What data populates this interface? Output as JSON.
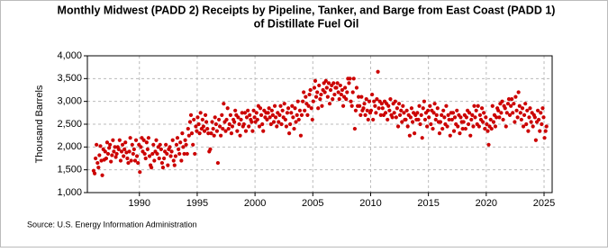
{
  "chart_data": {
    "type": "scatter",
    "title": "Monthly Midwest (PADD 2) Receipts by Pipeline, Tanker, and Barge from East Coast (PADD 1)",
    "subtitle": "of Distillate Fuel Oil",
    "ylabel": "Thousand Barrels",
    "source": "Source: U.S. Energy Information Administration",
    "color": "#cc0000",
    "grid": true,
    "xlim": [
      1985.5,
      2025.7
    ],
    "xticks": [
      1990,
      1995,
      2000,
      2005,
      2010,
      2015,
      2020,
      2025
    ],
    "ylim": [
      1000,
      4000
    ],
    "yticks": [
      {
        "value": 1000,
        "label": "1,000"
      },
      {
        "value": 1500,
        "label": "1,500"
      },
      {
        "value": 2000,
        "label": "2,000"
      },
      {
        "value": 2500,
        "label": "2,500"
      },
      {
        "value": 3000,
        "label": "3,000"
      },
      {
        "value": 3500,
        "label": "3,500"
      },
      {
        "value": 4000,
        "label": "4,000"
      }
    ],
    "x": [
      1986.04,
      1986.13,
      1986.21,
      1986.29,
      1986.38,
      1986.46,
      1986.54,
      1986.63,
      1986.71,
      1986.79,
      1986.88,
      1986.96,
      1987.04,
      1987.13,
      1987.21,
      1987.29,
      1987.38,
      1987.46,
      1987.54,
      1987.63,
      1987.71,
      1987.79,
      1987.88,
      1987.96,
      1988.04,
      1988.13,
      1988.21,
      1988.29,
      1988.38,
      1988.46,
      1988.54,
      1988.63,
      1988.71,
      1988.79,
      1988.88,
      1988.96,
      1989.04,
      1989.13,
      1989.21,
      1989.29,
      1989.38,
      1989.46,
      1989.54,
      1989.63,
      1989.71,
      1989.79,
      1989.88,
      1989.96,
      1990.04,
      1990.13,
      1990.21,
      1990.29,
      1990.38,
      1990.46,
      1990.54,
      1990.63,
      1990.71,
      1990.79,
      1990.88,
      1990.96,
      1991.04,
      1991.13,
      1991.21,
      1991.29,
      1991.38,
      1991.46,
      1991.54,
      1991.63,
      1991.71,
      1991.79,
      1991.88,
      1991.96,
      1992.04,
      1992.13,
      1992.21,
      1992.29,
      1992.38,
      1992.46,
      1992.54,
      1992.63,
      1992.71,
      1992.79,
      1992.88,
      1992.96,
      1993.04,
      1993.13,
      1993.21,
      1993.29,
      1993.38,
      1993.46,
      1993.54,
      1993.63,
      1993.71,
      1993.79,
      1993.88,
      1993.96,
      1994.04,
      1994.13,
      1994.21,
      1994.29,
      1994.38,
      1994.46,
      1994.54,
      1994.63,
      1994.71,
      1994.79,
      1994.88,
      1994.96,
      1995.04,
      1995.13,
      1995.21,
      1995.29,
      1995.38,
      1995.46,
      1995.54,
      1995.63,
      1995.71,
      1995.79,
      1995.88,
      1995.96,
      1996.04,
      1996.13,
      1996.21,
      1996.29,
      1996.38,
      1996.46,
      1996.54,
      1996.63,
      1996.71,
      1996.79,
      1996.88,
      1996.96,
      1997.04,
      1997.13,
      1997.21,
      1997.29,
      1997.38,
      1997.46,
      1997.54,
      1997.63,
      1997.71,
      1997.79,
      1997.88,
      1997.96,
      1998.04,
      1998.13,
      1998.21,
      1998.29,
      1998.38,
      1998.46,
      1998.54,
      1998.63,
      1998.71,
      1998.79,
      1998.88,
      1998.96,
      1999.04,
      1999.13,
      1999.21,
      1999.29,
      1999.38,
      1999.46,
      1999.54,
      1999.63,
      1999.71,
      1999.79,
      1999.88,
      1999.96,
      2000.04,
      2000.13,
      2000.21,
      2000.29,
      2000.38,
      2000.46,
      2000.54,
      2000.63,
      2000.71,
      2000.79,
      2000.88,
      2000.96,
      2001.04,
      2001.13,
      2001.21,
      2001.29,
      2001.38,
      2001.46,
      2001.54,
      2001.63,
      2001.71,
      2001.79,
      2001.88,
      2001.96,
      2002.04,
      2002.13,
      2002.21,
      2002.29,
      2002.38,
      2002.46,
      2002.54,
      2002.63,
      2002.71,
      2002.79,
      2002.88,
      2002.96,
      2003.04,
      2003.13,
      2003.21,
      2003.29,
      2003.38,
      2003.46,
      2003.54,
      2003.63,
      2003.71,
      2003.79,
      2003.88,
      2003.96,
      2004.04,
      2004.13,
      2004.21,
      2004.29,
      2004.38,
      2004.46,
      2004.54,
      2004.63,
      2004.71,
      2004.79,
      2004.88,
      2004.96,
      2005.04,
      2005.13,
      2005.21,
      2005.29,
      2005.38,
      2005.46,
      2005.54,
      2005.63,
      2005.71,
      2005.79,
      2005.88,
      2005.96,
      2006.04,
      2006.13,
      2006.21,
      2006.29,
      2006.38,
      2006.46,
      2006.54,
      2006.63,
      2006.71,
      2006.79,
      2006.88,
      2006.96,
      2007.04,
      2007.13,
      2007.21,
      2007.29,
      2007.38,
      2007.46,
      2007.54,
      2007.63,
      2007.71,
      2007.79,
      2007.88,
      2007.96,
      2008.04,
      2008.13,
      2008.21,
      2008.29,
      2008.38,
      2008.46,
      2008.54,
      2008.63,
      2008.71,
      2008.79,
      2008.88,
      2008.96,
      2009.04,
      2009.13,
      2009.21,
      2009.29,
      2009.38,
      2009.46,
      2009.54,
      2009.63,
      2009.71,
      2009.79,
      2009.88,
      2009.96,
      2010.04,
      2010.13,
      2010.21,
      2010.29,
      2010.38,
      2010.46,
      2010.54,
      2010.63,
      2010.71,
      2010.79,
      2010.88,
      2010.96,
      2011.04,
      2011.13,
      2011.21,
      2011.29,
      2011.38,
      2011.46,
      2011.54,
      2011.63,
      2011.71,
      2011.79,
      2011.88,
      2011.96,
      2012.04,
      2012.13,
      2012.21,
      2012.29,
      2012.38,
      2012.46,
      2012.54,
      2012.63,
      2012.71,
      2012.79,
      2012.88,
      2012.96,
      2013.04,
      2013.13,
      2013.21,
      2013.29,
      2013.38,
      2013.46,
      2013.54,
      2013.63,
      2013.71,
      2013.79,
      2013.88,
      2013.96,
      2014.04,
      2014.13,
      2014.21,
      2014.29,
      2014.38,
      2014.46,
      2014.54,
      2014.63,
      2014.71,
      2014.79,
      2014.88,
      2014.96,
      2015.04,
      2015.13,
      2015.21,
      2015.29,
      2015.38,
      2015.46,
      2015.54,
      2015.63,
      2015.71,
      2015.79,
      2015.88,
      2015.96,
      2016.04,
      2016.13,
      2016.21,
      2016.29,
      2016.38,
      2016.46,
      2016.54,
      2016.63,
      2016.71,
      2016.79,
      2016.88,
      2016.96,
      2017.04,
      2017.13,
      2017.21,
      2017.29,
      2017.38,
      2017.46,
      2017.54,
      2017.63,
      2017.71,
      2017.79,
      2017.88,
      2017.96,
      2018.04,
      2018.13,
      2018.21,
      2018.29,
      2018.38,
      2018.46,
      2018.54,
      2018.63,
      2018.71,
      2018.79,
      2018.88,
      2018.96,
      2019.04,
      2019.13,
      2019.21,
      2019.29,
      2019.38,
      2019.46,
      2019.54,
      2019.63,
      2019.71,
      2019.79,
      2019.88,
      2019.96,
      2020.04,
      2020.13,
      2020.21,
      2020.29,
      2020.38,
      2020.46,
      2020.54,
      2020.63,
      2020.71,
      2020.79,
      2020.88,
      2020.96,
      2021.04,
      2021.13,
      2021.21,
      2021.29,
      2021.38,
      2021.46,
      2021.54,
      2021.63,
      2021.71,
      2021.79,
      2021.88,
      2021.96,
      2022.04,
      2022.13,
      2022.21,
      2022.29,
      2022.38,
      2022.46,
      2022.54,
      2022.63,
      2022.71,
      2022.79,
      2022.88,
      2022.96,
      2023.04,
      2023.13,
      2023.21,
      2023.29,
      2023.38,
      2023.46,
      2023.54,
      2023.63,
      2023.71,
      2023.79,
      2023.88,
      2023.96,
      2024.04,
      2024.13,
      2024.21,
      2024.29,
      2024.38,
      2024.46,
      2024.54,
      2024.63,
      2024.71,
      2024.79,
      2024.88,
      2024.96,
      2025.04,
      2025.13,
      2025.21
    ],
    "values": [
      1480,
      1420,
      1750,
      2050,
      1650,
      1550,
      1820,
      2020,
      1700,
      1380,
      1950,
      1720,
      1900,
      1750,
      2100,
      1850,
      1980,
      2050,
      1680,
      1820,
      2150,
      1900,
      2000,
      1780,
      1850,
      2000,
      1950,
      2150,
      1700,
      1900,
      2050,
      1800,
      1950,
      2100,
      1880,
      1750,
      1650,
      1900,
      2200,
      1700,
      2050,
      1850,
      1950,
      1700,
      2150,
      1800,
      1650,
      2050,
      1450,
      2000,
      2200,
      1900,
      2150,
      1850,
      1750,
      2100,
      1950,
      2200,
      1800,
      1600,
      1550,
      1850,
      2050,
      1700,
      1900,
      2150,
      1850,
      2000,
      1750,
      2050,
      1950,
      1650,
      1550,
      1750,
      1900,
      2050,
      1850,
      1600,
      1950,
      2000,
      1800,
      1900,
      2150,
      1700,
      1600,
      1800,
      2050,
      2200,
      1950,
      1850,
      2100,
      1700,
      2300,
      2000,
      1850,
      2150,
      2050,
      1850,
      2400,
      2250,
      2550,
      2700,
      2300,
      2050,
      2600,
      1850,
      2450,
      2350,
      2650,
      2500,
      2300,
      2750,
      2400,
      2600,
      2450,
      2350,
      2700,
      2550,
      2400,
      2300,
      1900,
      1950,
      2300,
      2550,
      2400,
      2250,
      2650,
      2500,
      2350,
      1650,
      2600,
      2450,
      2250,
      2700,
      2400,
      2950,
      2550,
      2350,
      2600,
      2850,
      2400,
      2500,
      2700,
      2300,
      2450,
      2600,
      2550,
      2800,
      2700,
      2350,
      2650,
      2500,
      2250,
      2600,
      2750,
      2450,
      2500,
      2750,
      2350,
      2650,
      2800,
      2450,
      2700,
      2600,
      2550,
      2350,
      2800,
      2650,
      2550,
      2750,
      2600,
      2900,
      2450,
      2850,
      2700,
      2500,
      2350,
      2800,
      2650,
      2750,
      2600,
      2750,
      2850,
      2650,
      2500,
      2800,
      2700,
      2550,
      2900,
      2650,
      2450,
      2750,
      2550,
      2700,
      2900,
      2500,
      2800,
      2650,
      2950,
      2600,
      2450,
      2750,
      2850,
      2300,
      2500,
      2750,
      2900,
      2650,
      2400,
      2850,
      2550,
      2700,
      3000,
      2600,
      2800,
      2250,
      2700,
      3000,
      3200,
      2800,
      3100,
      2950,
      2700,
      2900,
      3150,
      3250,
      2850,
      2600,
      3000,
      3300,
      3450,
      3100,
      3200,
      2850,
      3350,
      3050,
      3150,
      2900,
      3250,
      3400,
      3200,
      3450,
      3300,
      3100,
      3400,
      2950,
      3250,
      3350,
      3050,
      3400,
      3150,
      3300,
      3300,
      3400,
      3200,
      3050,
      3350,
      3150,
      3250,
      2900,
      3100,
      3300,
      3050,
      3200,
      3500,
      3400,
      3500,
      3000,
      2900,
      3200,
      3500,
      2400,
      2800,
      3300,
      2900,
      3100,
      2900,
      2700,
      3100,
      2800,
      2850,
      2950,
      2700,
      3050,
      2800,
      2600,
      3000,
      2750,
      2800,
      3150,
      2600,
      3000,
      2900,
      2750,
      3050,
      3650,
      2850,
      3000,
      2700,
      2950,
      2850,
      2700,
      3000,
      2750,
      2950,
      2600,
      2900,
      2800,
      3050,
      2700,
      2650,
      2950,
      2750,
      3000,
      2650,
      2850,
      2450,
      2950,
      2700,
      2800,
      2550,
      2900,
      2750,
      2600,
      2600,
      2800,
      2450,
      2700,
      2250,
      2650,
      2850,
      2550,
      2750,
      2300,
      2700,
      2600,
      2750,
      2600,
      2900,
      2500,
      2700,
      2200,
      2850,
      3000,
      2600,
      2750,
      2450,
      2800,
      2650,
      2900,
      2500,
      2800,
      2400,
      2750,
      2950,
      2600,
      2700,
      2850,
      2550,
      2300,
      2550,
      2700,
      2400,
      2800,
      2650,
      2500,
      2900,
      2450,
      2700,
      2600,
      2250,
      2750,
      2600,
      2750,
      2350,
      2650,
      2500,
      2800,
      2450,
      2700,
      2300,
      2650,
      2550,
      2400,
      2550,
      2700,
      2400,
      2650,
      2800,
      2500,
      2750,
      2250,
      2600,
      2700,
      2450,
      2900,
      2650,
      2800,
      2500,
      2900,
      2450,
      2700,
      2600,
      2850,
      2550,
      2750,
      2400,
      2650,
      2500,
      2350,
      2050,
      2450,
      2600,
      2400,
      2900,
      2550,
      2700,
      2450,
      2650,
      2850,
      2800,
      2650,
      2950,
      2750,
      3000,
      2600,
      2900,
      2850,
      2450,
      2750,
      2950,
      3050,
      2700,
      2900,
      3050,
      2750,
      2950,
      2550,
      3100,
      2800,
      2650,
      3200,
      2900,
      2750,
      2600,
      2850,
      2450,
      2700,
      2950,
      2500,
      2800,
      2350,
      2650,
      2850,
      2550,
      2750,
      2450,
      2700,
      2650,
      2150,
      2550,
      2800,
      2600,
      2350,
      2750,
      2500,
      2850,
      2650,
      2200,
      2350,
      2450
    ]
  }
}
